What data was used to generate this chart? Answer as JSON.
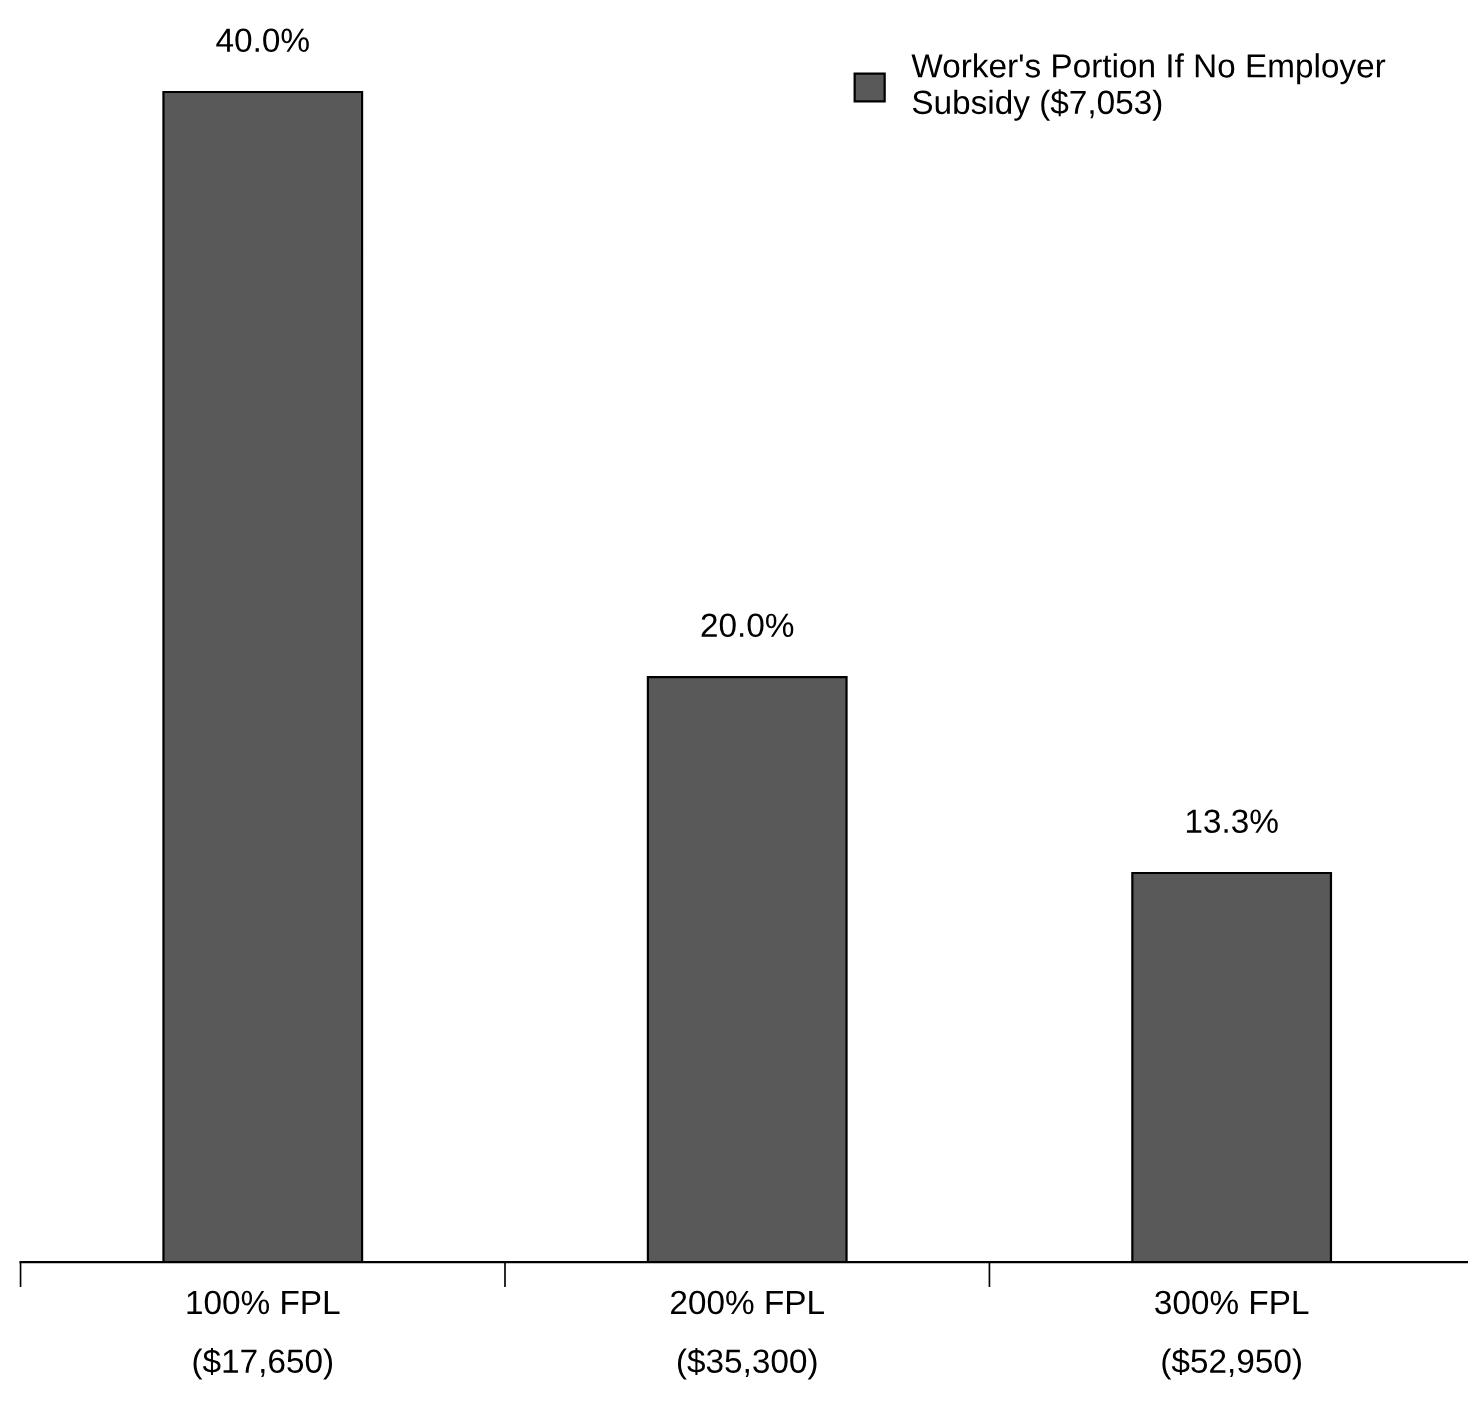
{
  "chart_data": {
    "type": "bar",
    "categories": [
      "100% FPL\n($17,650)",
      "200% FPL\n($35,300)",
      "300% FPL\n($52,950)"
    ],
    "series": [
      {
        "name": "Worker's Portion If No Employer\nSubsidy ($7,053)",
        "color": "#595959",
        "values": [
          40.0,
          20.0,
          13.3
        ],
        "value_labels": [
          "40.0%",
          "20.0%",
          "13.3%"
        ]
      }
    ],
    "legend": "top right"
  }
}
